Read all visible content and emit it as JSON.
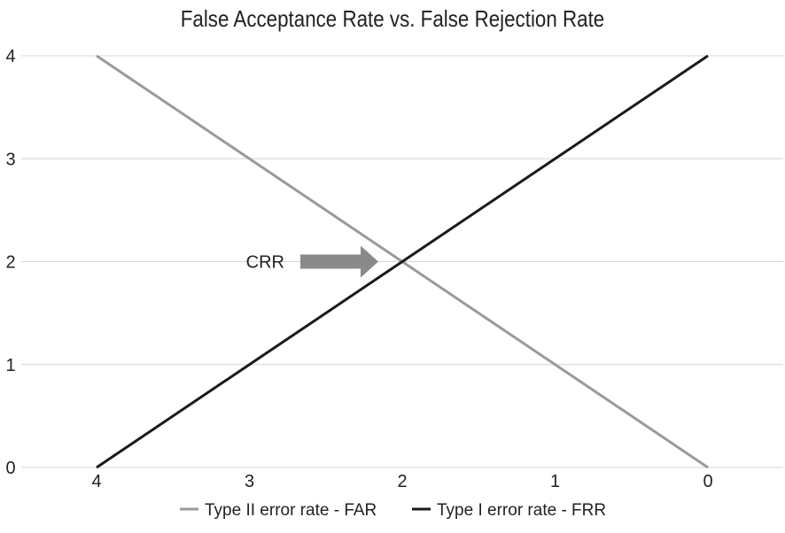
{
  "chart_data": {
    "type": "line",
    "title": "False Acceptance Rate vs. False Rejection Rate",
    "xlabel": "",
    "ylabel": "",
    "categories": [
      "4",
      "3",
      "2",
      "1",
      "0"
    ],
    "y_ticks": [
      "0",
      "1",
      "2",
      "3",
      "4"
    ],
    "ylim": [
      0,
      4
    ],
    "grid": true,
    "legend_position": "bottom",
    "series": [
      {
        "name": "Type II error rate - FAR",
        "values": [
          4,
          3,
          2,
          1,
          0
        ],
        "color": "#9a9a9a"
      },
      {
        "name": "Type I error rate - FRR",
        "values": [
          0,
          1,
          2,
          3,
          4
        ],
        "color": "#1a1a1a"
      }
    ],
    "annotations": [
      {
        "text": "CRR",
        "arrow_color": "#8a8a8a",
        "category": "2",
        "value": 2
      }
    ]
  }
}
